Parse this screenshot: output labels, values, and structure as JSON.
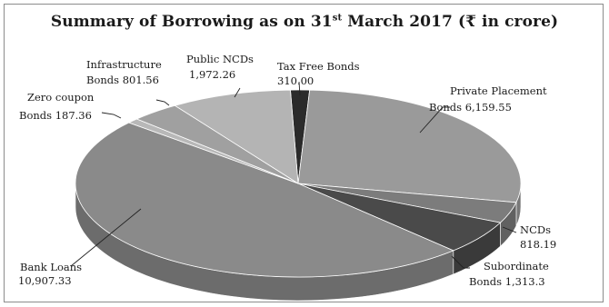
{
  "chart_data": {
    "type": "pie",
    "title": {
      "pre": "Summary of Borrowing as on 31",
      "sup": "st",
      "post": " March 2017 (₹ in crore)"
    },
    "slices": [
      {
        "line1": "Tax Free Bonds",
        "line2": "310.00",
        "value": 310.0,
        "color": "#2b2b2b"
      },
      {
        "line1": "Private Placement",
        "line2": "Bonds 6,159.55",
        "value": 6159.55,
        "color": "#9a9a9a"
      },
      {
        "line1": "NCDs",
        "line2": "818.19",
        "value": 818.19,
        "color": "#7c7c7c"
      },
      {
        "line1": "Subordinate",
        "line2": "Bonds 1,313.3",
        "value": 1313.3,
        "color": "#4a4a4a"
      },
      {
        "line1": "Bank Loans",
        "line2": "10,907.33",
        "value": 10907.33,
        "color": "#8a8a8a"
      },
      {
        "line1": "Zero coupon",
        "line2": "Bonds 187.36",
        "value": 187.36,
        "color": "#b8b8b8"
      },
      {
        "line1": "Infrastructure",
        "line2": "Bonds 801.56",
        "value": 801.56,
        "color": "#a0a0a0"
      },
      {
        "line1": "Public NCDs",
        "line2": "1,972.26",
        "value": 1972.26,
        "color": "#b4b4b4"
      }
    ]
  }
}
